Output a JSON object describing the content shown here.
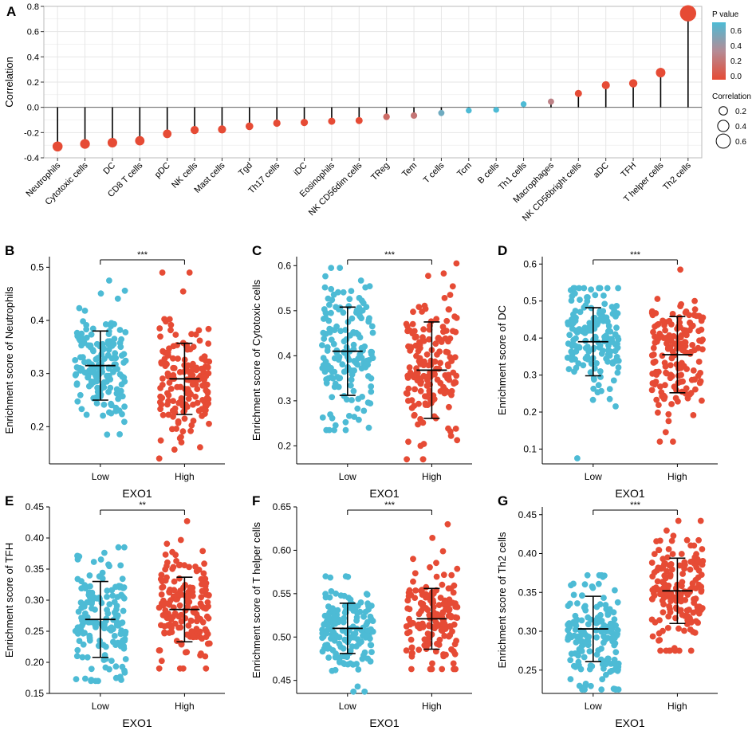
{
  "colors": {
    "low": "#4DBBD5",
    "high": "#E64B35",
    "grid": "#e6e6e6",
    "mid": "#b48c96",
    "axis": "#333333"
  },
  "chart_data": [
    {
      "panel": "A",
      "type": "lollipop",
      "ylabel": "Correlation",
      "ylim": [
        -0.4,
        0.8
      ],
      "yticks": [
        "-0.4",
        "-0.2",
        "0.0",
        "0.2",
        "0.4",
        "0.6",
        "0.8"
      ],
      "categories": [
        "Neutrophils",
        "Cytotoxic cells",
        "DC",
        "CD8 T cells",
        "pDC",
        "NK cells",
        "Mast cells",
        "Tgd",
        "Th17 cells",
        "iDC",
        "Eosinophils",
        "NK CD56dim cells",
        "TReg",
        "Tem",
        "T cells",
        "Tcm",
        "B cells",
        "Th1 cells",
        "Macrophages",
        "NK CD56bright cells",
        "aDC",
        "TFH",
        "T helper cells",
        "Th2 cells"
      ],
      "correlation": [
        -0.31,
        -0.29,
        -0.28,
        -0.265,
        -0.21,
        -0.18,
        -0.175,
        -0.15,
        -0.125,
        -0.12,
        -0.11,
        -0.105,
        -0.075,
        -0.065,
        -0.045,
        -0.025,
        -0.02,
        0.025,
        0.045,
        0.11,
        0.175,
        0.19,
        0.275,
        0.745
      ],
      "pvalue": [
        0.0,
        0.0,
        0.0,
        0.0,
        0.0,
        0.0,
        0.0,
        0.0,
        0.0,
        0.0,
        0.0,
        0.0,
        0.15,
        0.2,
        0.5,
        0.7,
        0.8,
        0.7,
        0.25,
        0.0,
        0.0,
        0.0,
        0.0,
        0.0
      ],
      "legend_pvalue": {
        "title": "P value",
        "ticks": [
          "0.6",
          "0.4",
          "0.2",
          "0.0"
        ]
      },
      "legend_size": {
        "title": "Correlation",
        "labels": [
          "0.2",
          "0.4",
          "0.6"
        ]
      }
    },
    {
      "panel": "B",
      "type": "scatter",
      "xlabel": "EXO1",
      "ylabel": "Enrichment score of Neutrophils",
      "categories": [
        "Low",
        "High"
      ],
      "ylim": [
        0.13,
        0.52
      ],
      "yticks": [
        "0.2",
        "0.3",
        "0.4",
        "0.5"
      ],
      "signif": "***",
      "groups": [
        {
          "mean": 0.315,
          "sd": 0.065,
          "min": 0.185,
          "max": 0.475
        },
        {
          "mean": 0.29,
          "sd": 0.067,
          "min": 0.14,
          "max": 0.49
        }
      ]
    },
    {
      "panel": "C",
      "type": "scatter",
      "xlabel": "EXO1",
      "ylabel": "Enrichment score of Cytotoxic cells",
      "categories": [
        "Low",
        "High"
      ],
      "ylim": [
        0.16,
        0.62
      ],
      "yticks": [
        "0.2",
        "0.3",
        "0.4",
        "0.5",
        "0.6"
      ],
      "signif": "***",
      "groups": [
        {
          "mean": 0.41,
          "sd": 0.098,
          "min": 0.235,
          "max": 0.595
        },
        {
          "mean": 0.368,
          "sd": 0.107,
          "min": 0.17,
          "max": 0.605
        }
      ]
    },
    {
      "panel": "D",
      "type": "scatter",
      "xlabel": "EXO1",
      "ylabel": "Enrichment score of DC",
      "categories": [
        "Low",
        "High"
      ],
      "ylim": [
        0.06,
        0.62
      ],
      "yticks": [
        "0.1",
        "0.2",
        "0.3",
        "0.4",
        "0.5",
        "0.6"
      ],
      "signif": "***",
      "groups": [
        {
          "mean": 0.39,
          "sd": 0.092,
          "min": 0.075,
          "max": 0.535
        },
        {
          "mean": 0.355,
          "sd": 0.103,
          "min": 0.12,
          "max": 0.585
        }
      ]
    },
    {
      "panel": "E",
      "type": "scatter",
      "xlabel": "EXO1",
      "ylabel": "Enrichment score of TFH",
      "categories": [
        "Low",
        "High"
      ],
      "ylim": [
        0.15,
        0.45
      ],
      "yticks": [
        "0.15",
        "0.20",
        "0.25",
        "0.30",
        "0.35",
        "0.40",
        "0.45"
      ],
      "signif": "**",
      "groups": [
        {
          "mean": 0.269,
          "sd": 0.061,
          "min": 0.17,
          "max": 0.385
        },
        {
          "mean": 0.285,
          "sd": 0.052,
          "min": 0.19,
          "max": 0.427
        }
      ]
    },
    {
      "panel": "F",
      "type": "scatter",
      "xlabel": "EXO1",
      "ylabel": "Enrichment score of T helper cells",
      "categories": [
        "Low",
        "High"
      ],
      "ylim": [
        0.435,
        0.65
      ],
      "yticks": [
        "0.45",
        "0.50",
        "0.55",
        "0.60",
        "0.65"
      ],
      "signif": "***",
      "groups": [
        {
          "mean": 0.51,
          "sd": 0.029,
          "min": 0.437,
          "max": 0.57
        },
        {
          "mean": 0.521,
          "sd": 0.035,
          "min": 0.463,
          "max": 0.63
        }
      ]
    },
    {
      "panel": "G",
      "type": "scatter",
      "xlabel": "EXO1",
      "ylabel": "Enrichment score of Th2 cells",
      "categories": [
        "Low",
        "High"
      ],
      "ylim": [
        0.22,
        0.46
      ],
      "yticks": [
        "0.25",
        "0.30",
        "0.35",
        "0.40",
        "0.45"
      ],
      "signif": "***",
      "groups": [
        {
          "mean": 0.303,
          "sd": 0.042,
          "min": 0.225,
          "max": 0.372
        },
        {
          "mean": 0.352,
          "sd": 0.042,
          "min": 0.275,
          "max": 0.442
        }
      ]
    }
  ]
}
